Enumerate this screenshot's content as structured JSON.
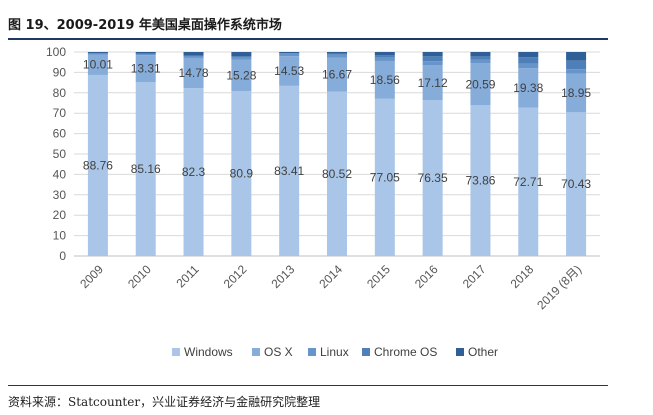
{
  "figure": {
    "title": "图 19、2009-2019 年美国桌面操作系统市场",
    "source": "资料来源：Statcounter，兴业证券经济与金融研究院整理"
  },
  "chart_data": {
    "type": "bar",
    "stacked": true,
    "categories": [
      "2009",
      "2010",
      "2011",
      "2012",
      "2013",
      "2014",
      "2015",
      "2016",
      "2017",
      "2018",
      "2019 (8月)"
    ],
    "ylim": [
      0,
      100
    ],
    "yticks": [
      0,
      10,
      20,
      30,
      40,
      50,
      60,
      70,
      80,
      90,
      100
    ],
    "grid": true,
    "legend_position": "bottom",
    "series": [
      {
        "name": "Windows",
        "color": "#a9c6e8",
        "values": [
          88.76,
          85.16,
          82.3,
          80.9,
          83.41,
          80.52,
          77.05,
          76.35,
          73.86,
          72.71,
          70.43
        ],
        "labels": [
          "88.76",
          "85.16",
          "82.3",
          "80.9",
          "83.41",
          "80.52",
          "77.05",
          "76.35",
          "73.86",
          "72.71",
          "70.43"
        ]
      },
      {
        "name": "OS X",
        "color": "#86acd9",
        "values": [
          10.01,
          13.31,
          14.78,
          15.28,
          14.53,
          16.67,
          18.56,
          17.12,
          20.59,
          19.38,
          18.95
        ],
        "labels": [
          "10.01",
          "13.31",
          "14.78",
          "15.28",
          "14.53",
          "16.67",
          "18.56",
          "17.12",
          "20.59",
          "19.38",
          "18.95"
        ]
      },
      {
        "name": "Linux",
        "color": "#6794c9",
        "values": [
          0.6,
          0.7,
          1.2,
          1.5,
          1.2,
          1.5,
          1.6,
          2.0,
          1.9,
          2.2,
          2.2
        ]
      },
      {
        "name": "Chrome OS",
        "color": "#4e7fb8",
        "values": [
          0.0,
          0.0,
          0.0,
          0.1,
          0.2,
          0.5,
          1.3,
          2.4,
          1.5,
          3.2,
          4.3
        ]
      },
      {
        "name": "Other",
        "color": "#2f5f96",
        "values": [
          0.63,
          0.83,
          1.72,
          2.22,
          0.66,
          0.81,
          1.49,
          2.13,
          2.15,
          2.51,
          4.12
        ]
      }
    ]
  }
}
